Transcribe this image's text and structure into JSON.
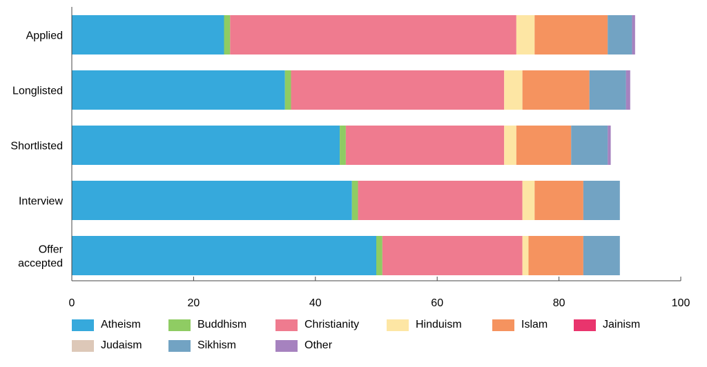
{
  "chart_data": {
    "type": "bar",
    "orientation": "horizontal",
    "stacked": true,
    "title": "",
    "xlabel": "",
    "ylabel": "",
    "xlim": [
      0,
      100
    ],
    "xticks": [
      "0",
      "20",
      "40",
      "60",
      "80",
      "100"
    ],
    "grid": false,
    "legend_position": "bottom",
    "categories": [
      "Applied",
      "Longlisted",
      "Shortlisted",
      "Interview",
      "Offer accepted"
    ],
    "category_lines": [
      [
        "Applied"
      ],
      [
        "Longlisted"
      ],
      [
        "Shortlisted"
      ],
      [
        "Interview"
      ],
      [
        "Offer",
        "accepted"
      ]
    ],
    "series": [
      {
        "name": "Atheism",
        "color": "#36a9dc",
        "values": [
          25,
          35,
          44,
          46,
          50
        ]
      },
      {
        "name": "Buddhism",
        "color": "#8fcc63",
        "values": [
          1,
          1,
          1,
          1,
          1
        ]
      },
      {
        "name": "Christianity",
        "color": "#ef7b8f",
        "values": [
          47,
          35,
          26,
          27,
          23
        ]
      },
      {
        "name": "Hinduism",
        "color": "#fde6a4",
        "values": [
          3,
          3,
          2,
          2,
          1
        ]
      },
      {
        "name": "Islam",
        "color": "#f5935f",
        "values": [
          12,
          11,
          9,
          8,
          9
        ]
      },
      {
        "name": "Jainism",
        "color": "#e9346d",
        "values": [
          0,
          0,
          0,
          0,
          0
        ]
      },
      {
        "name": "Judaism",
        "color": "#ddc8b8",
        "values": [
          0,
          0,
          0,
          0,
          0
        ]
      },
      {
        "name": "Sikhism",
        "color": "#72a3c3",
        "values": [
          4,
          6,
          6,
          6,
          6
        ]
      },
      {
        "name": "Other",
        "color": "#a682bf",
        "values": [
          0.5,
          0.7,
          0.5,
          0,
          0
        ]
      }
    ]
  }
}
